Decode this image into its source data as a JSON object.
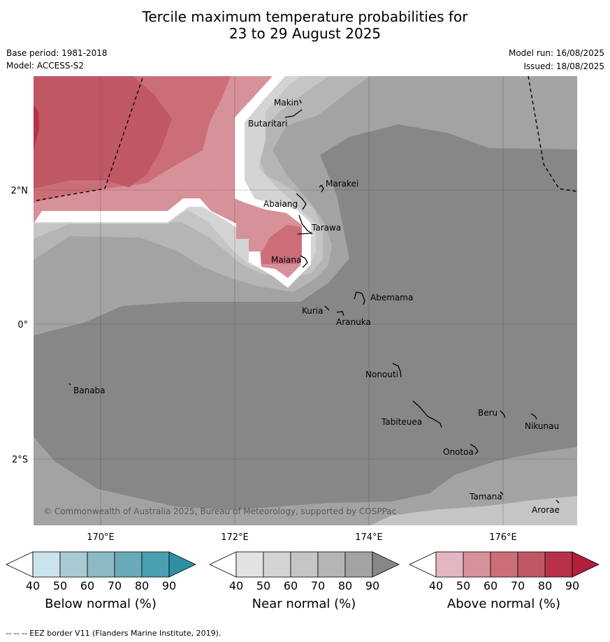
{
  "title_line1": "Tercile maximum temperature probabilities for",
  "title_line2": "23 to 29 August 2025",
  "base_period": "Base period: 1981-2018",
  "model": "Model: ACCESS-S2",
  "model_run": "Model run: 16/08/2025",
  "issued": "Issued: 18/08/2025",
  "copyright": "© Commonwealth of Australia 2025, Bureau of Meteorology, supported by COSPPac",
  "axes": {
    "lat_labels": [
      "2°N",
      "0°",
      "2°S"
    ],
    "lon_labels": [
      "170°E",
      "172°E",
      "174°E",
      "176°E"
    ]
  },
  "places": [
    "Makin",
    "Butaritari",
    "Marakei",
    "Abaiang",
    "Tarawa",
    "Maiana",
    "Abemama",
    "Kuria",
    "Aranuka",
    "Nonouti",
    "Banaba",
    "Beru",
    "Tabiteuea",
    "Nikunau",
    "Onotoa",
    "Tamana",
    "Arorae"
  ],
  "colorbars": {
    "below": {
      "label": "Below normal (%)",
      "ticks": [
        "40",
        "50",
        "60",
        "70",
        "80",
        "90"
      ],
      "colors": [
        "#ffffff",
        "#cbe3ea",
        "#a9cbd3",
        "#8cbac5",
        "#6aaab8",
        "#48a0b1",
        "#2e8fa5"
      ]
    },
    "near": {
      "label": "Near normal (%)",
      "ticks": [
        "40",
        "50",
        "60",
        "70",
        "80",
        "90"
      ],
      "colors": [
        "#ffffff",
        "#e2e2e2",
        "#d4d4d4",
        "#c5c5c5",
        "#b5b5b5",
        "#a3a3a3",
        "#878787"
      ]
    },
    "above": {
      "label": "Above normal (%)",
      "ticks": [
        "40",
        "50",
        "60",
        "70",
        "80",
        "90"
      ],
      "colors": [
        "#ffffff",
        "#e4b7c0",
        "#d79199",
        "#cb6e78",
        "#c05765",
        "#b7314a",
        "#b01f3c"
      ]
    }
  },
  "footer": "--  --  -- EEZ border V11 (Flanders Marine Institute, 2019)."
}
